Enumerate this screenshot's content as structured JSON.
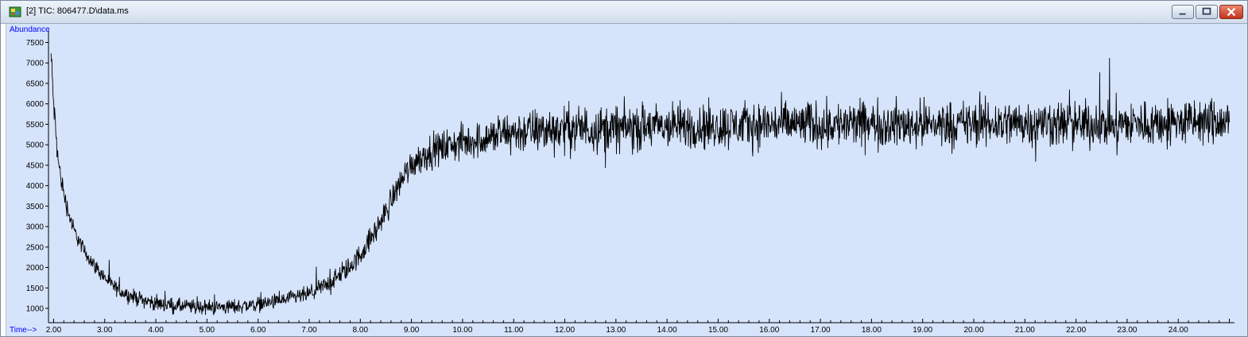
{
  "window": {
    "title": "[2] TIC: 806477.D\\data.ms",
    "controls": [
      "minimize",
      "maximize",
      "close"
    ],
    "icons": {
      "app": "chromatogram-app-icon"
    }
  },
  "colors": {
    "plot_background": "#d6e4fb",
    "trace": "#000000",
    "axis_label": "#0000ff"
  },
  "chart_data": {
    "type": "line",
    "ylabel": "Abundance",
    "xlabel": "Time-->",
    "xlim": [
      1.9,
      25.1
    ],
    "ylim": [
      650,
      7800
    ],
    "grid": false,
    "y_ticks": [
      1000,
      1500,
      2000,
      2500,
      3000,
      3500,
      4000,
      4500,
      5000,
      5500,
      6000,
      6500,
      7000,
      7500
    ],
    "y_tick_labels": [
      "1000",
      "1500",
      "2000",
      "2500",
      "3000",
      "3500",
      "4000",
      "4500",
      "5000",
      "5500",
      "6000",
      "6500",
      "7000",
      "7500"
    ],
    "x_ticks": [
      2,
      3,
      4,
      5,
      6,
      7,
      8,
      9,
      10,
      11,
      12,
      13,
      14,
      15,
      16,
      17,
      18,
      19,
      20,
      21,
      22,
      23,
      24
    ],
    "x_tick_labels": [
      "2.00",
      "3.00",
      "4.00",
      "5.00",
      "6.00",
      "7.00",
      "8.00",
      "9.00",
      "10.00",
      "11.00",
      "12.00",
      "13.00",
      "14.00",
      "15.00",
      "16.00",
      "17.00",
      "18.00",
      "19.00",
      "20.00",
      "21.00",
      "22.00",
      "23.00",
      "24.00"
    ],
    "series": [
      {
        "x": [
          1.95,
          2.0,
          2.05,
          2.1,
          2.2,
          2.3,
          2.4,
          2.6,
          2.8,
          3.0,
          3.2,
          3.5,
          4.0,
          4.5,
          5.0,
          5.5,
          6.0,
          6.5,
          7.0,
          7.3,
          7.6,
          7.9,
          8.1,
          8.3,
          8.5,
          8.7,
          8.9,
          9.1,
          9.4,
          9.8,
          10.2,
          10.6,
          11.0,
          12.0,
          13.0,
          14.0,
          15.0,
          16.0,
          17.0,
          18.0,
          19.0,
          20.0,
          21.0,
          22.0,
          23.0,
          24.0,
          25.0
        ],
        "y": [
          7200,
          6000,
          5200,
          4500,
          3800,
          3300,
          2900,
          2400,
          2050,
          1750,
          1500,
          1300,
          1120,
          1050,
          1030,
          1040,
          1100,
          1200,
          1350,
          1550,
          1800,
          2150,
          2500,
          2900,
          3350,
          3900,
          4350,
          4650,
          4850,
          5000,
          5100,
          5200,
          5300,
          5400,
          5400,
          5450,
          5450,
          5500,
          5500,
          5500,
          5500,
          5500,
          5550,
          5500,
          5500,
          5550,
          5550
        ],
        "noise_amplitude": [
          180,
          160,
          150,
          140,
          120,
          110,
          100,
          90,
          90,
          90,
          90,
          90,
          90,
          90,
          90,
          90,
          90,
          90,
          100,
          110,
          120,
          130,
          140,
          150,
          160,
          170,
          180,
          190,
          200,
          210,
          220,
          240,
          260,
          280,
          280,
          280,
          280,
          280,
          280,
          280,
          280,
          280,
          280,
          280,
          280,
          280,
          280
        ]
      }
    ]
  }
}
